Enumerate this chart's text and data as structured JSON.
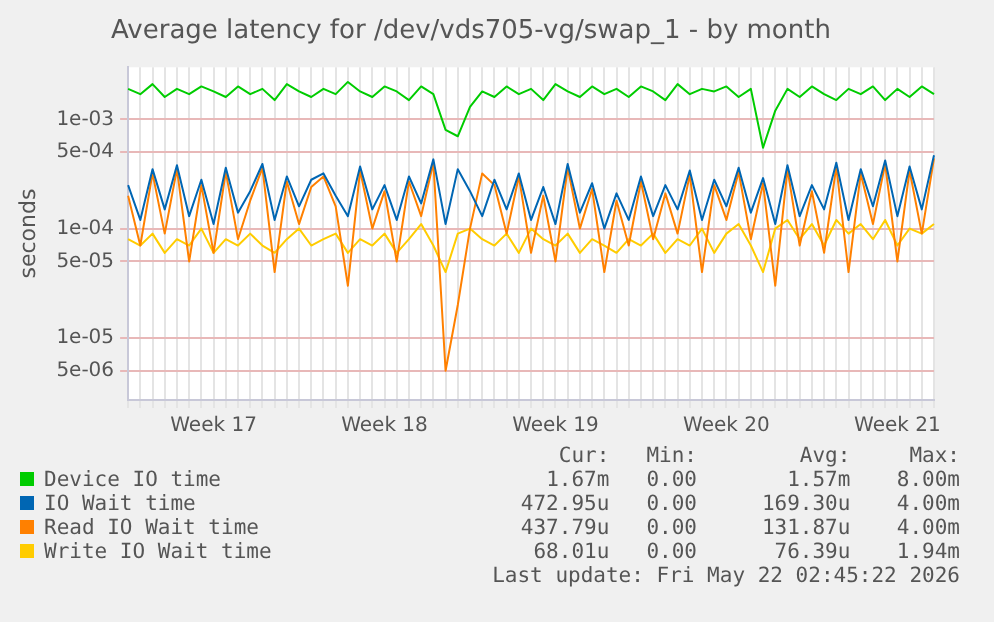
{
  "chart_data": {
    "type": "line",
    "title": "Average latency for /dev/vds705-vg/swap_1 - by month",
    "ylabel": "seconds",
    "log": "y",
    "grid": true,
    "legend": "bottom",
    "marker": "none",
    "line_style": "solid",
    "categories": [
      null,
      null,
      null,
      null,
      null,
      null,
      null,
      "Week 17",
      null,
      null,
      null,
      null,
      null,
      null,
      null,
      null,
      null,
      null,
      null,
      null,
      null,
      "Week 18",
      null,
      null,
      null,
      null,
      null,
      null,
      null,
      null,
      null,
      null,
      null,
      null,
      null,
      "Week 19",
      null,
      null,
      null,
      null,
      null,
      null,
      null,
      null,
      null,
      null,
      null,
      null,
      null,
      "Week 20",
      null,
      null,
      null,
      null,
      null,
      null,
      null,
      null,
      null,
      null,
      null,
      null,
      null,
      "Week 21",
      null,
      null,
      null
    ],
    "ylim": [
      2.7e-06,
      0.003
    ],
    "yticks": [
      {
        "value": 5e-06,
        "label": "5e-06"
      },
      {
        "value": 1e-05,
        "label": "1e-05"
      },
      {
        "value": 5e-05,
        "label": "5e-05"
      },
      {
        "value": 0.0001,
        "label": "1e-04"
      },
      {
        "value": 0.0005,
        "label": "5e-04"
      },
      {
        "value": 0.001,
        "label": "1e-03"
      }
    ],
    "series": [
      {
        "name": "Device IO time",
        "color": "#00cc00",
        "values": [
          0.0019,
          0.0017,
          0.0021,
          0.0016,
          0.0019,
          0.0017,
          0.002,
          0.0018,
          0.0016,
          0.002,
          0.0017,
          0.0019,
          0.0015,
          0.0021,
          0.0018,
          0.0016,
          0.0019,
          0.0017,
          0.0022,
          0.0018,
          0.0016,
          0.002,
          0.0018,
          0.0015,
          0.002,
          0.0017,
          0.0008,
          0.0007,
          0.0013,
          0.0018,
          0.0016,
          0.002,
          0.0017,
          0.0019,
          0.0015,
          0.0021,
          0.0018,
          0.0016,
          0.002,
          0.0017,
          0.0019,
          0.0016,
          0.002,
          0.0018,
          0.0015,
          0.0021,
          0.0017,
          0.0019,
          0.0018,
          0.002,
          0.0016,
          0.0019,
          0.00055,
          0.0012,
          0.0019,
          0.0016,
          0.002,
          0.0017,
          0.0015,
          0.0019,
          0.0017,
          0.002,
          0.0015,
          0.0019,
          0.0016,
          0.002,
          0.0017
        ]
      },
      {
        "name": "IO Wait time",
        "color": "#0066b3",
        "values": [
          0.00025,
          0.00012,
          0.00035,
          0.00015,
          0.00038,
          0.00013,
          0.00028,
          0.00011,
          0.00036,
          0.00014,
          0.00022,
          0.00039,
          0.00012,
          0.0003,
          0.00016,
          0.00028,
          0.00032,
          0.0002,
          0.00013,
          0.00037,
          0.00015,
          0.00025,
          0.00012,
          0.0003,
          0.00017,
          0.00043,
          0.00011,
          0.00035,
          0.00022,
          0.00013,
          0.00028,
          0.00015,
          0.00032,
          0.00012,
          0.00024,
          0.00011,
          0.00039,
          0.00014,
          0.00026,
          0.0001,
          0.00021,
          0.00012,
          0.0003,
          0.00013,
          0.00025,
          0.00015,
          0.00034,
          0.00012,
          0.00028,
          0.00016,
          0.00036,
          0.00014,
          0.00029,
          0.00011,
          0.00038,
          0.00013,
          0.00025,
          0.00015,
          0.0004,
          0.00012,
          0.00035,
          0.00016,
          0.00042,
          0.00013,
          0.00037,
          0.00015,
          0.00047
        ]
      },
      {
        "name": "Read IO Wait time",
        "color": "#ff8000",
        "values": [
          0.0002,
          7e-05,
          0.00032,
          9e-05,
          0.00035,
          5e-05,
          0.00025,
          6e-05,
          0.00033,
          8e-05,
          0.00018,
          0.00036,
          4e-05,
          0.00027,
          0.00011,
          0.00024,
          0.0003,
          0.00016,
          3e-05,
          0.00034,
          0.0001,
          0.00022,
          5e-05,
          0.00027,
          0.00013,
          0.0004,
          5e-06,
          2e-05,
          0.0001,
          0.00032,
          0.00025,
          9e-05,
          0.0003,
          6e-05,
          0.0002,
          5e-05,
          0.00036,
          0.0001,
          0.00023,
          4e-05,
          0.00018,
          7e-05,
          0.00027,
          8e-05,
          0.00021,
          9e-05,
          0.00031,
          4e-05,
          0.00025,
          0.00012,
          0.00033,
          8e-05,
          0.00026,
          3e-05,
          0.00035,
          7e-05,
          0.00022,
          6e-05,
          0.00037,
          4e-05,
          0.00032,
          0.00011,
          0.00039,
          5e-05,
          0.00034,
          9e-05,
          0.00044
        ]
      },
      {
        "name": "Write IO Wait time",
        "color": "#ffcc00",
        "values": [
          8e-05,
          7e-05,
          9e-05,
          6e-05,
          8e-05,
          7e-05,
          0.0001,
          6e-05,
          8e-05,
          7e-05,
          9e-05,
          7e-05,
          6e-05,
          8e-05,
          0.0001,
          7e-05,
          8e-05,
          9e-05,
          6e-05,
          8e-05,
          7e-05,
          9e-05,
          6e-05,
          8e-05,
          0.00011,
          7e-05,
          4e-05,
          9e-05,
          0.0001,
          8e-05,
          7e-05,
          9e-05,
          6e-05,
          0.0001,
          8e-05,
          7e-05,
          9e-05,
          6e-05,
          8e-05,
          7e-05,
          6e-05,
          8e-05,
          7e-05,
          9e-05,
          6e-05,
          8e-05,
          7e-05,
          0.0001,
          6e-05,
          9e-05,
          0.00011,
          7e-05,
          4e-05,
          0.0001,
          0.00012,
          8e-05,
          0.00011,
          7e-05,
          0.00012,
          9e-05,
          0.00011,
          8e-05,
          0.00012,
          7e-05,
          0.0001,
          9e-05,
          0.00011
        ]
      }
    ],
    "annotations": [
      "Cur:",
      "Min:",
      "Avg:",
      "Max:",
      "1.67m",
      "0.00",
      "1.57m",
      "8.00m",
      "472.95u",
      "0.00",
      "169.30u",
      "4.00m",
      "437.79u",
      "0.00",
      "131.87u",
      "4.00m",
      "68.01u",
      "0.00",
      "76.39u",
      "1.94m",
      "Last update: Fri May 22 02:45:22 2026"
    ]
  }
}
